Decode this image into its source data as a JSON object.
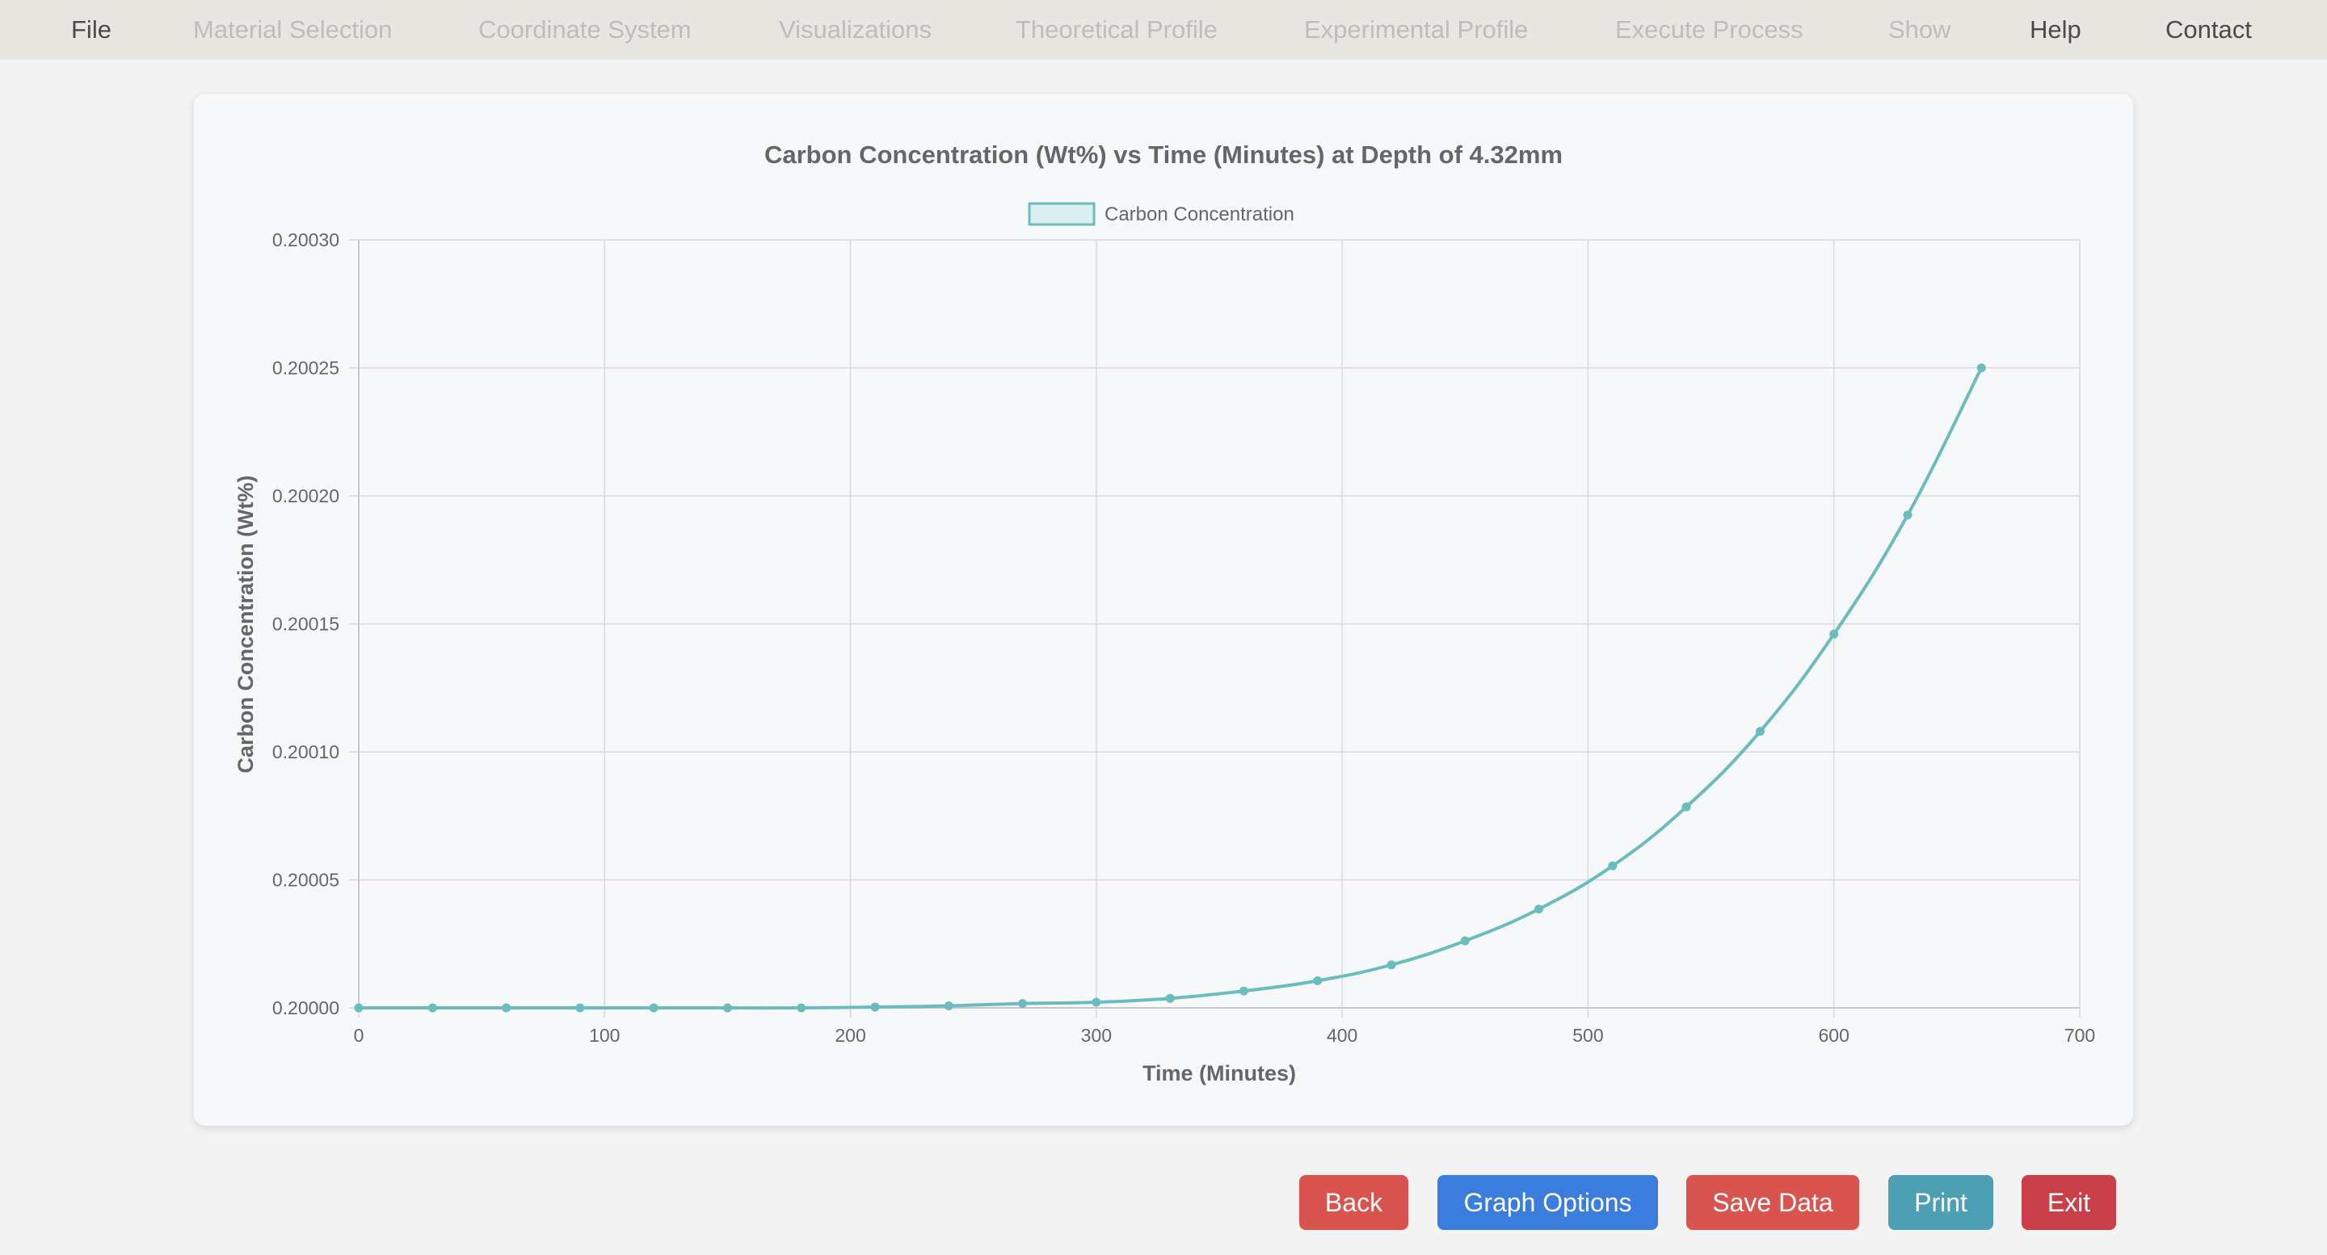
{
  "menu": {
    "items": [
      {
        "label": "File",
        "enabled": true
      },
      {
        "label": "Material Selection",
        "enabled": false
      },
      {
        "label": "Coordinate System",
        "enabled": false
      },
      {
        "label": "Visualizations",
        "enabled": false
      },
      {
        "label": "Theoretical Profile",
        "enabled": false
      },
      {
        "label": "Experimental Profile",
        "enabled": false
      },
      {
        "label": "Execute Process",
        "enabled": false
      },
      {
        "label": "Show",
        "enabled": false
      },
      {
        "label": "Help",
        "enabled": true
      },
      {
        "label": "Contact",
        "enabled": true
      }
    ]
  },
  "buttons": {
    "back": "Back",
    "graph_options": "Graph Options",
    "save_data": "Save Data",
    "print": "Print",
    "exit": "Exit"
  },
  "colors": {
    "line": "#6bbcbf",
    "back_button": "#d9534f",
    "graph_options_button": "#3b7ddd",
    "save_data_button": "#d9534f",
    "print_button": "#4d9fb3",
    "exit_button": "#c9404a"
  },
  "chart_data": {
    "type": "line",
    "title": "Carbon Concentration (Wt%) vs Time (Minutes) at Depth of 4.32mm",
    "xlabel": "Time (Minutes)",
    "ylabel": "Carbon Concentration (Wt%)",
    "legend": "top-center",
    "grid": true,
    "xlim": [
      0,
      700
    ],
    "ylim": [
      0.2,
      0.2003
    ],
    "x_ticks": [
      "0",
      "100",
      "200",
      "300",
      "400",
      "500",
      "600",
      "700"
    ],
    "y_ticks": [
      "0.20000",
      "0.20005",
      "0.20010",
      "0.20015",
      "0.20020",
      "0.20025",
      "0.20030"
    ],
    "series": [
      {
        "name": "Carbon Concentration",
        "x": [
          0,
          30,
          60,
          90,
          120,
          150,
          180,
          210,
          240,
          270,
          300,
          330,
          360,
          390,
          420,
          450,
          480,
          510,
          540,
          570,
          600,
          630,
          660
        ],
        "values": [
          0.2,
          0.2,
          0.2,
          0.2,
          0.2,
          0.2,
          0.2,
          0.2000003,
          0.2000008,
          0.2000017,
          0.2000022,
          0.2000037,
          0.2000066,
          0.2000106,
          0.2000168,
          0.2000262,
          0.2000386,
          0.2000555,
          0.2000785,
          0.200108,
          0.200146,
          0.2001925,
          0.20025
        ]
      }
    ]
  }
}
